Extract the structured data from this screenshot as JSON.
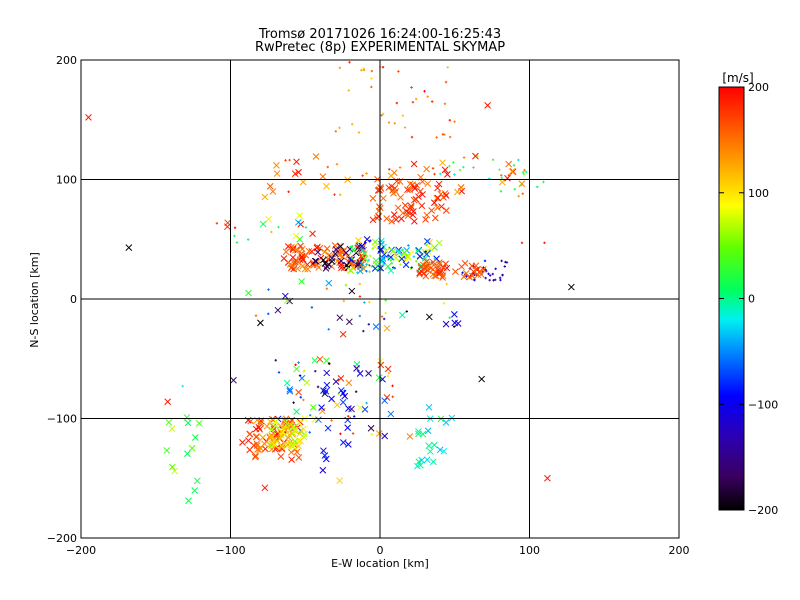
{
  "title": "Tromsø 20171026 16:24:00-16:25:43",
  "subtitle": "RwPretec (8p) EXPERIMENTAL SKYMAP",
  "chart_data": {
    "type": "scatter",
    "title": "Tromsø 20171026 16:24:00-16:25:43",
    "subtitle": "RwPretec (8p) EXPERIMENTAL SKYMAP",
    "xlabel": "E-W location [km]",
    "ylabel": "N-S location [km]",
    "xlim": [
      -200,
      200
    ],
    "ylim": [
      -200,
      200
    ],
    "xticks": [
      "−200",
      "−100",
      "0",
      "100",
      "200"
    ],
    "yticks": [
      "−200",
      "−100",
      "0",
      "100",
      "200"
    ],
    "grid": true,
    "colorbar": {
      "title": "[m/s]",
      "range": [
        -200,
        200
      ],
      "ticks": [
        "200",
        "100",
        "0",
        "−100",
        "−200"
      ],
      "colormap": "rainbow (black-purple-blue-cyan-green-yellow-orange-red)"
    },
    "markers": {
      "cross": "x",
      "dot": "+"
    },
    "clusters": [
      {
        "name": "upper-north",
        "x": [
          -30,
          50
        ],
        "y": [
          135,
          200
        ],
        "vel": [
          100,
          200
        ],
        "n": 40,
        "marker": "dot"
      },
      {
        "name": "n100-band",
        "x": [
          -80,
          100
        ],
        "y": [
          85,
          120
        ],
        "vel": [
          120,
          200
        ],
        "n": 55,
        "marker": "mix"
      },
      {
        "name": "n100-core",
        "x": [
          -5,
          45
        ],
        "y": [
          65,
          100
        ],
        "vel": [
          150,
          200
        ],
        "n": 70,
        "marker": "cross"
      },
      {
        "name": "n100-east-cool",
        "x": [
          40,
          110
        ],
        "y": [
          90,
          120
        ],
        "vel": [
          -40,
          60
        ],
        "n": 22,
        "marker": "dot"
      },
      {
        "name": "n40-west-red",
        "x": [
          -65,
          -10
        ],
        "y": [
          25,
          45
        ],
        "vel": [
          140,
          200
        ],
        "n": 90,
        "marker": "cross"
      },
      {
        "name": "n40-black",
        "x": [
          -45,
          -10
        ],
        "y": [
          25,
          45
        ],
        "vel": [
          -200,
          -150
        ],
        "n": 25,
        "marker": "cross"
      },
      {
        "name": "n40-center-mix",
        "x": [
          -20,
          40
        ],
        "y": [
          22,
          50
        ],
        "vel": [
          -120,
          120
        ],
        "n": 120,
        "marker": "mix"
      },
      {
        "name": "n40-east-red",
        "x": [
          25,
          45
        ],
        "y": [
          18,
          32
        ],
        "vel": [
          150,
          200
        ],
        "n": 35,
        "marker": "cross"
      },
      {
        "name": "n40-east-blue",
        "x": [
          55,
          85
        ],
        "y": [
          14,
          32
        ],
        "vel": [
          -160,
          -90
        ],
        "n": 35,
        "marker": "dot"
      },
      {
        "name": "n40-far-east-orange",
        "x": [
          50,
          70
        ],
        "y": [
          18,
          30
        ],
        "vel": [
          150,
          180
        ],
        "n": 15,
        "marker": "cross"
      },
      {
        "name": "upper-left-sparse",
        "x": [
          -110,
          -40
        ],
        "y": [
          45,
          70
        ],
        "vel": [
          -50,
          200
        ],
        "n": 18,
        "marker": "mix"
      },
      {
        "name": "mid-band",
        "x": [
          -85,
          60
        ],
        "y": [
          -30,
          15
        ],
        "vel": [
          -200,
          200
        ],
        "n": 40,
        "marker": "mix"
      },
      {
        "name": "sw-mixed",
        "x": [
          -70,
          10
        ],
        "y": [
          -115,
          -50
        ],
        "vel": [
          -200,
          200
        ],
        "n": 80,
        "marker": "mix"
      },
      {
        "name": "sw-orange",
        "x": [
          -90,
          -50
        ],
        "y": [
          -135,
          -100
        ],
        "vel": [
          130,
          200
        ],
        "n": 70,
        "marker": "cross"
      },
      {
        "name": "sw-yellow-green",
        "x": [
          -75,
          -50
        ],
        "y": [
          -125,
          -100
        ],
        "vel": [
          60,
          130
        ],
        "n": 45,
        "marker": "cross"
      },
      {
        "name": "far-sw-green",
        "x": [
          -145,
          -120
        ],
        "y": [
          -170,
          -70
        ],
        "vel": [
          10,
          80
        ],
        "n": 14,
        "marker": "cross"
      },
      {
        "name": "south-east-cyan",
        "x": [
          25,
          50
        ],
        "y": [
          -140,
          -90
        ],
        "vel": [
          -40,
          20
        ],
        "n": 20,
        "marker": "cross"
      },
      {
        "name": "south-center-blue",
        "x": [
          -40,
          -20
        ],
        "y": [
          -145,
          -60
        ],
        "vel": [
          -130,
          -60
        ],
        "n": 20,
        "marker": "cross"
      }
    ],
    "isolated_points": [
      {
        "x": -195,
        "y": 152,
        "vel": 190,
        "marker": "cross"
      },
      {
        "x": -168,
        "y": 43,
        "vel": -200,
        "marker": "cross"
      },
      {
        "x": 128,
        "y": 10,
        "vel": -200,
        "marker": "cross"
      },
      {
        "x": 68,
        "y": -67,
        "vel": -200,
        "marker": "cross"
      },
      {
        "x": 112,
        "y": -150,
        "vel": 190,
        "marker": "cross"
      },
      {
        "x": 72,
        "y": 162,
        "vel": 190,
        "marker": "cross"
      },
      {
        "x": -88,
        "y": 5,
        "vel": 30,
        "marker": "cross"
      },
      {
        "x": 95,
        "y": 47,
        "vel": 190,
        "marker": "dot"
      },
      {
        "x": 110,
        "y": 47,
        "vel": 190,
        "marker": "dot"
      },
      {
        "x": -142,
        "y": -86,
        "vel": 190,
        "marker": "cross"
      },
      {
        "x": -132,
        "y": -73,
        "vel": -20,
        "marker": "dot"
      },
      {
        "x": -98,
        "y": -68,
        "vel": -160,
        "marker": "cross"
      },
      {
        "x": 20,
        "y": -115,
        "vel": 150,
        "marker": "cross"
      },
      {
        "x": -27,
        "y": -152,
        "vel": 110,
        "marker": "cross"
      },
      {
        "x": -92,
        "y": -120,
        "vel": 190,
        "marker": "cross"
      },
      {
        "x": -77,
        "y": -158,
        "vel": 190,
        "marker": "cross"
      },
      {
        "x": -80,
        "y": -20,
        "vel": -200,
        "marker": "cross"
      },
      {
        "x": 33,
        "y": -15,
        "vel": -200,
        "marker": "cross"
      },
      {
        "x": 50,
        "y": -20,
        "vel": -110,
        "marker": "cross"
      }
    ]
  }
}
